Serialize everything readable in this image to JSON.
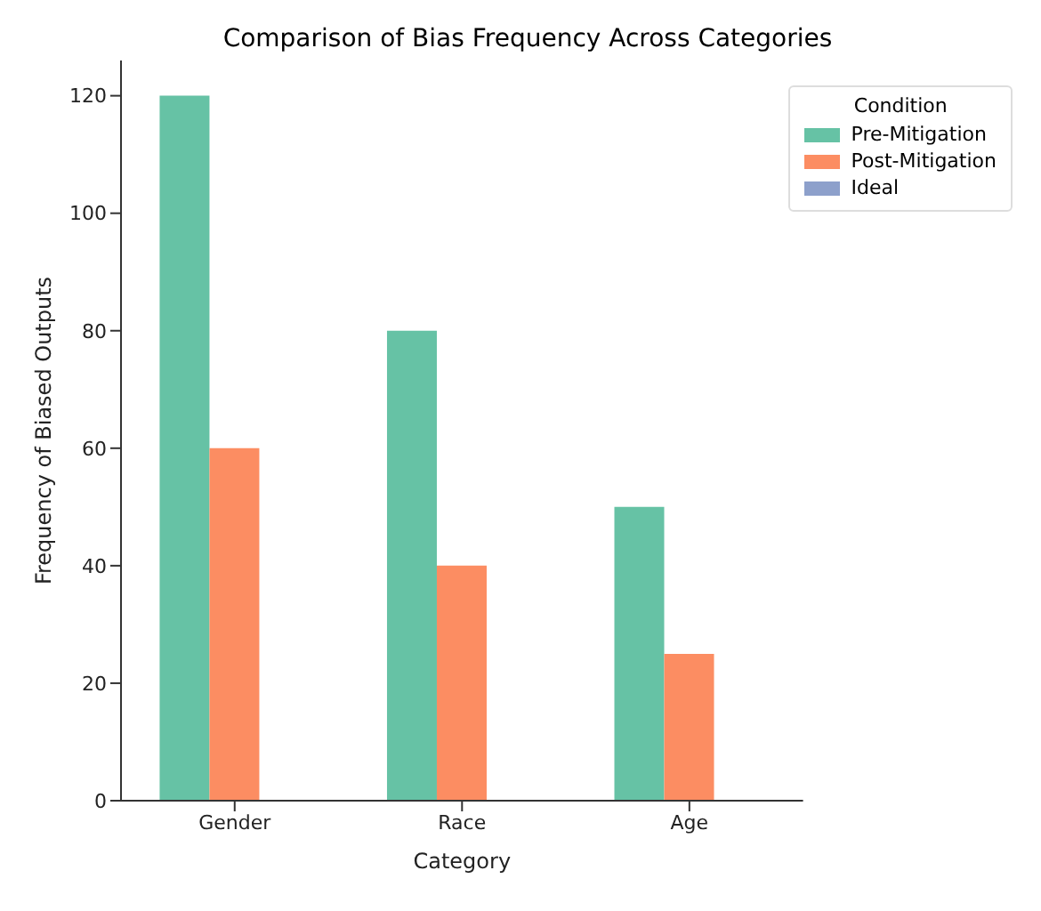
{
  "chart_data": {
    "type": "bar",
    "title": "Comparison of Bias Frequency Across Categories",
    "xlabel": "Category",
    "ylabel": "Frequency of Biased Outputs",
    "legend_title": "Condition",
    "categories": [
      "Gender",
      "Race",
      "Age"
    ],
    "series": [
      {
        "name": "Pre-Mitigation",
        "color": "#66c2a5",
        "values": [
          120,
          80,
          50
        ]
      },
      {
        "name": "Post-Mitigation",
        "color": "#fc8d62",
        "values": [
          60,
          40,
          25
        ]
      },
      {
        "name": "Ideal",
        "color": "#8da0cb",
        "values": [
          0,
          0,
          0
        ]
      }
    ],
    "ylim": [
      0,
      126
    ],
    "yticks": [
      0,
      20,
      40,
      60,
      80,
      100,
      120
    ],
    "grid": false,
    "legend": "top right"
  }
}
